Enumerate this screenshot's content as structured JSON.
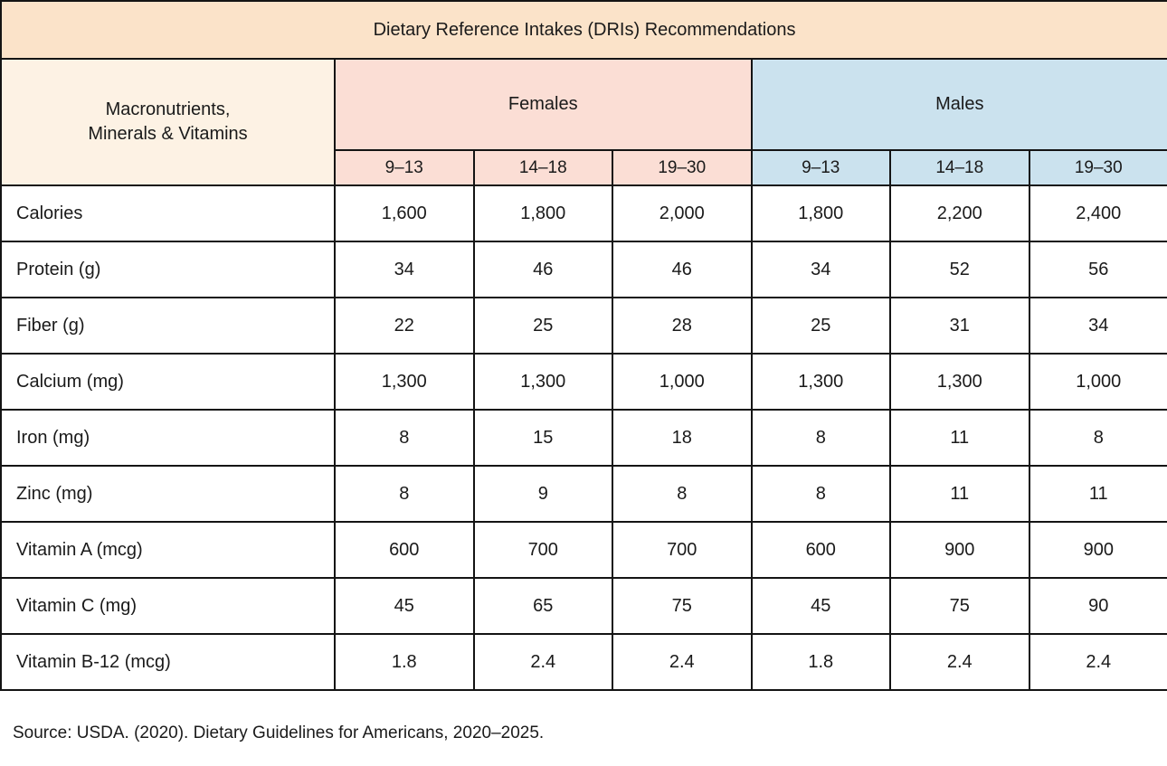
{
  "title": "Dietary Reference Intakes (DRIs) Recommendations",
  "source_note": "Source: USDA. (2020). Dietary Guidelines for Americans, 2020–2025.",
  "colors": {
    "title_bg": "#fbe3c9",
    "row_header_bg": "#fdf2e4",
    "females_bg": "#fbded5",
    "males_bg": "#cbe2ee",
    "border": "#141414",
    "text": "#1a1a1a"
  },
  "table": {
    "corner_label": "Macronutrients,\nMinerals & Vitamins",
    "groups": [
      {
        "label": "Females",
        "ages": [
          "9–13",
          "14–18",
          "19–30"
        ]
      },
      {
        "label": "Males",
        "ages": [
          "9–13",
          "14–18",
          "19–30"
        ]
      }
    ],
    "rows": [
      {
        "label": "Calories",
        "values": [
          "1,600",
          "1,800",
          "2,000",
          "1,800",
          "2,200",
          "2,400"
        ]
      },
      {
        "label": "Protein (g)",
        "values": [
          "34",
          "46",
          "46",
          "34",
          "52",
          "56"
        ]
      },
      {
        "label": "Fiber (g)",
        "values": [
          "22",
          "25",
          "28",
          "25",
          "31",
          "34"
        ]
      },
      {
        "label": "Calcium (mg)",
        "values": [
          "1,300",
          "1,300",
          "1,000",
          "1,300",
          "1,300",
          "1,000"
        ]
      },
      {
        "label": "Iron (mg)",
        "values": [
          "8",
          "15",
          "18",
          "8",
          "11",
          "8"
        ]
      },
      {
        "label": "Zinc (mg)",
        "values": [
          "8",
          "9",
          "8",
          "8",
          "11",
          "11"
        ]
      },
      {
        "label": "Vitamin A (mcg)",
        "values": [
          "600",
          "700",
          "700",
          "600",
          "900",
          "900"
        ]
      },
      {
        "label": "Vitamin C (mg)",
        "values": [
          "45",
          "65",
          "75",
          "45",
          "75",
          "90"
        ]
      },
      {
        "label": "Vitamin B-12 (mcg)",
        "values": [
          "1.8",
          "2.4",
          "2.4",
          "1.8",
          "2.4",
          "2.4"
        ]
      }
    ]
  },
  "chart_data": {
    "type": "table",
    "title": "Dietary Reference Intakes (DRIs) Recommendations",
    "column_groups": [
      "Females",
      "Males"
    ],
    "columns": [
      "Females 9–13",
      "Females 14–18",
      "Females 19–30",
      "Males 9–13",
      "Males 14–18",
      "Males 19–30"
    ],
    "row_header": "Macronutrients, Minerals & Vitamins",
    "rows": [
      {
        "label": "Calories",
        "values": [
          1600,
          1800,
          2000,
          1800,
          2200,
          2400
        ]
      },
      {
        "label": "Protein (g)",
        "values": [
          34,
          46,
          46,
          34,
          52,
          56
        ]
      },
      {
        "label": "Fiber (g)",
        "values": [
          22,
          25,
          28,
          25,
          31,
          34
        ]
      },
      {
        "label": "Calcium (mg)",
        "values": [
          1300,
          1300,
          1000,
          1300,
          1300,
          1000
        ]
      },
      {
        "label": "Iron (mg)",
        "values": [
          8,
          15,
          18,
          8,
          11,
          8
        ]
      },
      {
        "label": "Zinc (mg)",
        "values": [
          8,
          9,
          8,
          8,
          11,
          11
        ]
      },
      {
        "label": "Vitamin A (mcg)",
        "values": [
          600,
          700,
          700,
          600,
          900,
          900
        ]
      },
      {
        "label": "Vitamin C (mg)",
        "values": [
          45,
          65,
          75,
          45,
          75,
          90
        ]
      },
      {
        "label": "Vitamin B-12 (mcg)",
        "values": [
          1.8,
          2.4,
          2.4,
          1.8,
          2.4,
          2.4
        ]
      }
    ],
    "source": "Source: USDA. (2020). Dietary Guidelines for Americans, 2020–2025."
  }
}
